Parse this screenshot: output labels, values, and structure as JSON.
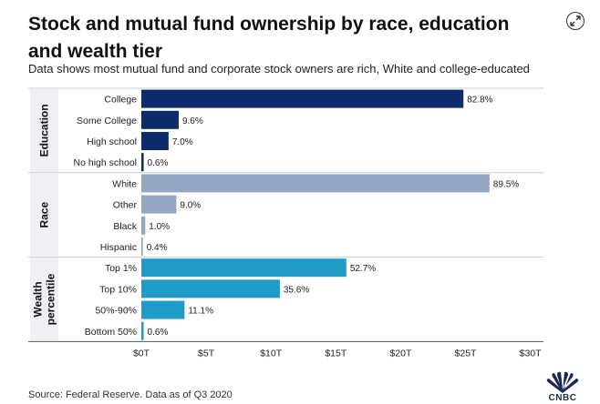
{
  "title": "Stock and mutual fund ownership by race, education and wealth tier",
  "subtitle": "Data shows most mutual fund and corporate stock owners are rich, White and college-educated",
  "source": "Source: Federal Reserve. Data as of Q3 2020",
  "logo_text": "CNBC",
  "icons": {
    "expand": "expand-icon",
    "logo": "peacock-logo-icon"
  },
  "chart_data": {
    "type": "bar",
    "orientation": "horizontal",
    "title": "Stock and mutual fund ownership by race, education and wealth tier",
    "xlim": [
      0,
      30
    ],
    "x_unit": "trillion USD",
    "x_ticks": [
      "$0T",
      "$5T",
      "$10T",
      "$15T",
      "$20T",
      "$25T",
      "$30T"
    ],
    "groups": [
      {
        "name": "Education",
        "color": "#0d2b6b",
        "items": [
          {
            "label": "College",
            "value": 24.84,
            "pct_label": "82.8%"
          },
          {
            "label": "Some College",
            "value": 2.88,
            "pct_label": "9.6%"
          },
          {
            "label": "High school",
            "value": 2.1,
            "pct_label": "7.0%"
          },
          {
            "label": "No high school",
            "value": 0.18,
            "pct_label": "0.6%"
          }
        ]
      },
      {
        "name": "Race",
        "color": "#94a6c4",
        "items": [
          {
            "label": "White",
            "value": 26.85,
            "pct_label": "89.5%"
          },
          {
            "label": "Other",
            "value": 2.7,
            "pct_label": "9.0%"
          },
          {
            "label": "Black",
            "value": 0.3,
            "pct_label": "1.0%"
          },
          {
            "label": "Hispanic",
            "value": 0.12,
            "pct_label": "0.4%"
          }
        ]
      },
      {
        "name": "Wealth percentile",
        "name_lines": [
          "Wealth",
          "percentile"
        ],
        "color": "#1f9bc8",
        "items": [
          {
            "label": "Top 1%",
            "value": 15.81,
            "pct_label": "52.7%"
          },
          {
            "label": "Top 10%",
            "value": 10.68,
            "pct_label": "35.6%"
          },
          {
            "label": "50%-90%",
            "value": 3.33,
            "pct_label": "11.1%"
          },
          {
            "label": "Bottom 50%",
            "value": 0.18,
            "pct_label": "0.6%"
          }
        ]
      }
    ]
  }
}
